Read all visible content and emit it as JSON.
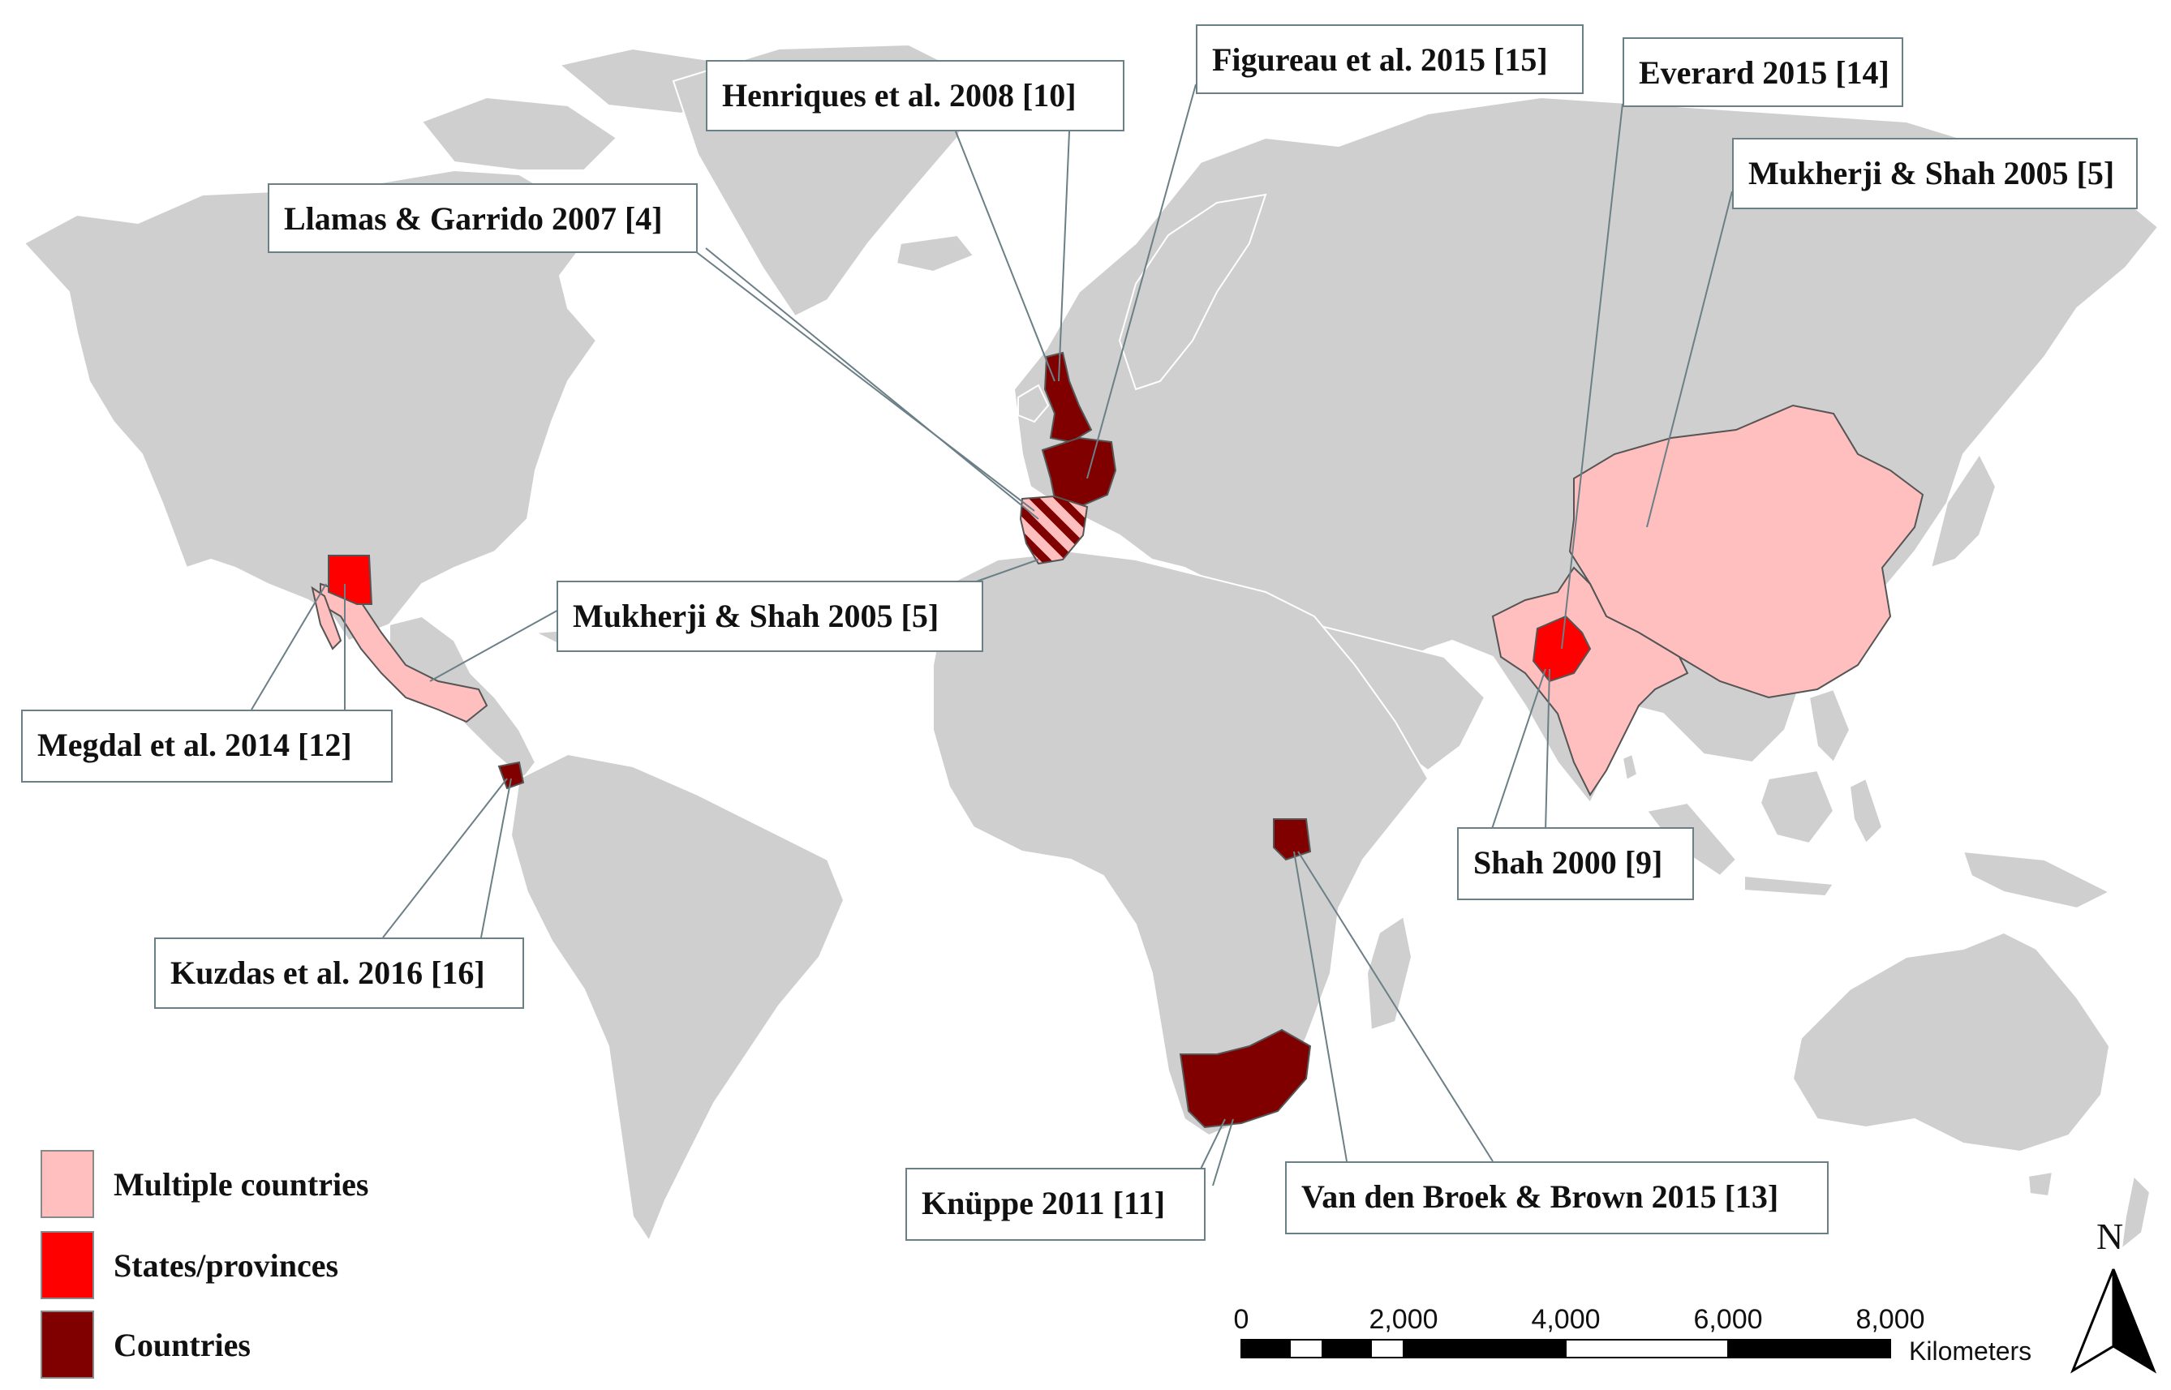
{
  "colors": {
    "land": "#cfcfcf",
    "border": "#ffffff",
    "multiple_countries": "#ffbfbf",
    "states_provinces": "#ff0000",
    "countries": "#800000",
    "leader": "#6b7f86"
  },
  "callouts": {
    "henriques": "Henriques et al. 2008 [10]",
    "figureau": "Figureau et al. 2015 [15]",
    "everard": "Everard 2015 [14]",
    "llamas": "Llamas & Garrido 2007 [4]",
    "mukherji_asia": "Mukherji & Shah 2005 [5]",
    "mukherji_am": "Mukherji & Shah 2005 [5]",
    "megdal": "Megdal et al. 2014 [12]",
    "kuzdas": "Kuzdas et al. 2016 [16]",
    "shah": "Shah 2000 [9]",
    "knuppe": "Knüppe 2011 [11]",
    "vandenbroek": "Van den Broek & Brown 2015 [13]"
  },
  "legend": {
    "multiple": "Multiple countries",
    "states": "States/provinces",
    "countries": "Countries"
  },
  "scale": {
    "ticks": [
      "0",
      "2,000",
      "4,000",
      "6,000",
      "8,000"
    ],
    "unit": "Kilometers"
  },
  "north": "N"
}
